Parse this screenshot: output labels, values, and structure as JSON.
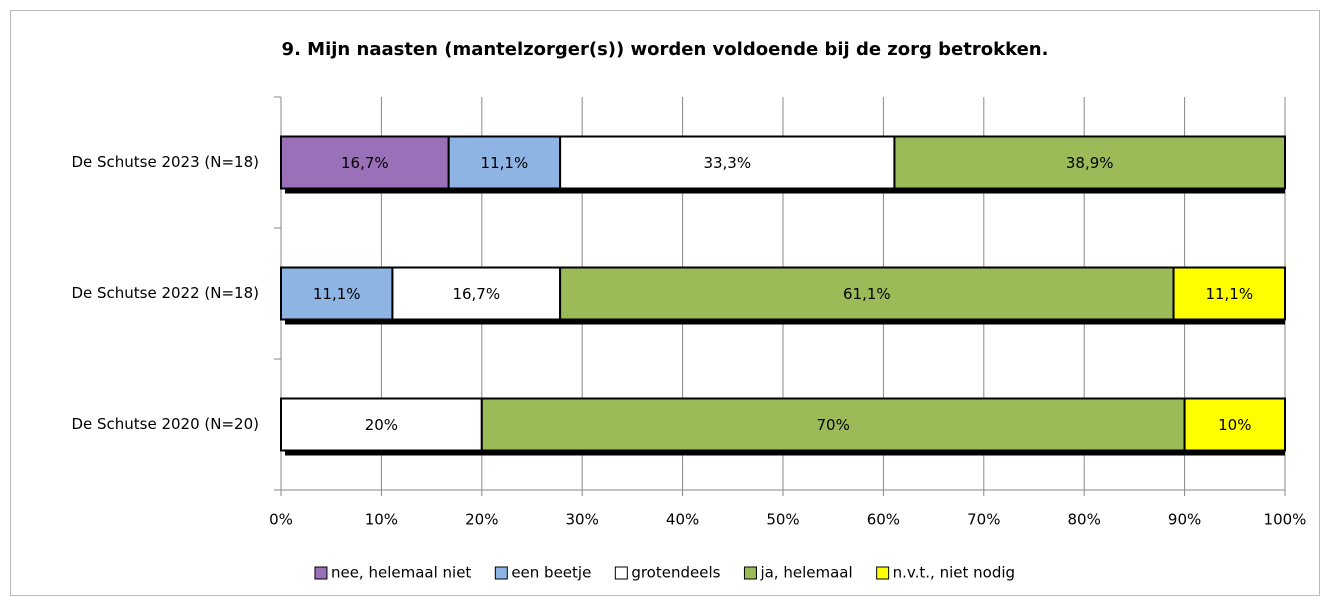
{
  "chart_data": {
    "type": "stacked-bar-horizontal",
    "title": "9. Mijn naasten (mantelzorger(s)) worden voldoende bij de zorg betrokken.",
    "categories": [
      "De Schutse 2023 (N=18)",
      "De Schutse 2022 (N=18)",
      "De Schutse 2020 (N=20)"
    ],
    "series": [
      {
        "name": "nee, helemaal niet",
        "color": "#9a70b8",
        "values": [
          16.7,
          null,
          null
        ],
        "value_labels": [
          "16,7%",
          null,
          null
        ]
      },
      {
        "name": "een beetje",
        "color": "#8db4e2",
        "values": [
          11.1,
          11.1,
          null
        ],
        "value_labels": [
          "11,1%",
          "11,1%",
          null
        ]
      },
      {
        "name": "grotendeels",
        "color": "#ffffff",
        "values": [
          33.3,
          16.7,
          20
        ],
        "value_labels": [
          "33,3%",
          "16,7%",
          "20%"
        ]
      },
      {
        "name": "ja, helemaal",
        "color": "#9bbb59",
        "values": [
          38.9,
          61.1,
          70
        ],
        "value_labels": [
          "38,9%",
          "61,1%",
          "70%"
        ]
      },
      {
        "name": "n.v.t., niet nodig",
        "color": "#ffff00",
        "values": [
          null,
          11.1,
          10
        ],
        "value_labels": [
          null,
          "11,1%",
          "10%"
        ]
      }
    ],
    "xlim": [
      0,
      100
    ],
    "xticks": [
      {
        "value": 0,
        "label": "0%"
      },
      {
        "value": 10,
        "label": "10%"
      },
      {
        "value": 20,
        "label": "20%"
      },
      {
        "value": 30,
        "label": "30%"
      },
      {
        "value": 40,
        "label": "40%"
      },
      {
        "value": 50,
        "label": "50%"
      },
      {
        "value": 60,
        "label": "60%"
      },
      {
        "value": 70,
        "label": "70%"
      },
      {
        "value": 80,
        "label": "80%"
      },
      {
        "value": 90,
        "label": "90%"
      },
      {
        "value": 100,
        "label": "100%"
      }
    ],
    "grid": true,
    "legend": "bottom"
  }
}
